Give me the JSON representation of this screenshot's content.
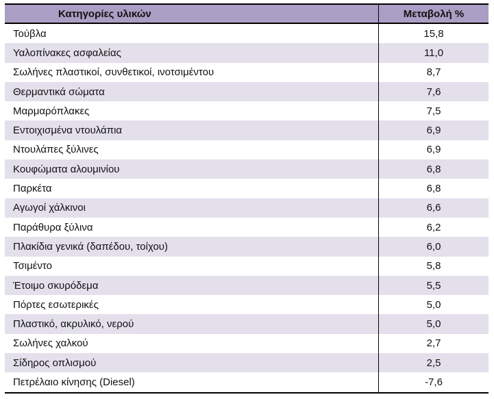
{
  "table": {
    "header": {
      "category": "Κατηγορίες υλικών",
      "change": "Μεταβολή %"
    },
    "rows": [
      {
        "category": "Τούβλα",
        "change": "15,8"
      },
      {
        "category": "Υαλοπίνακες ασφαλείας",
        "change": "11,0"
      },
      {
        "category": "Σωλήνες πλαστικοί, συνθετικοί, ινοτσιμέντου",
        "change": "8,7"
      },
      {
        "category": "Θερμαντικά σώματα",
        "change": "7,6"
      },
      {
        "category": "Μαρμαρόπλακες",
        "change": "7,5"
      },
      {
        "category": "Εντοιχισμένα ντουλάπια",
        "change": "6,9"
      },
      {
        "category": "Ντουλάπες ξύλινες",
        "change": "6,9"
      },
      {
        "category": "Κουφώματα αλουμινίου",
        "change": "6,8"
      },
      {
        "category": "Παρκέτα",
        "change": "6,8"
      },
      {
        "category": "Αγωγοί χάλκινοι",
        "change": "6,6"
      },
      {
        "category": "Παράθυρα ξύλινα",
        "change": "6,2"
      },
      {
        "category": "Πλακίδια γενικά (δαπέδου, τοίχου)",
        "change": "6,0"
      },
      {
        "category": "Τσιμέντο",
        "change": "5,8"
      },
      {
        "category": "Έτοιμο σκυρόδεμα",
        "change": "5,5"
      },
      {
        "category": "Πόρτες εσωτερικές",
        "change": "5,0"
      },
      {
        "category": "Πλαστικό, ακρυλικό, νερού",
        "change": "5,0"
      },
      {
        "category": "Σωλήνες χαλκού",
        "change": "2,7"
      },
      {
        "category": "Σίδηρος οπλισμού",
        "change": "2,5"
      },
      {
        "category": "Πετρέλαιο κίνησης (Diesel)",
        "change": "-7,6"
      }
    ]
  },
  "colors": {
    "header_bg": "#ab9ec4",
    "alt_row_bg": "#e3dfeb",
    "border": "#000000",
    "text": "#111111"
  },
  "chart_data": {
    "type": "table",
    "columns": [
      "Κατηγορίες υλικών",
      "Μεταβολή %"
    ],
    "rows": [
      [
        "Τούβλα",
        15.8
      ],
      [
        "Υαλοπίνακες ασφαλείας",
        11.0
      ],
      [
        "Σωλήνες πλαστικοί, συνθετικοί, ινοτσιμέντου",
        8.7
      ],
      [
        "Θερμαντικά σώματα",
        7.6
      ],
      [
        "Μαρμαρόπλακες",
        7.5
      ],
      [
        "Εντοιχισμένα ντουλάπια",
        6.9
      ],
      [
        "Ντουλάπες ξύλινες",
        6.9
      ],
      [
        "Κουφώματα αλουμινίου",
        6.8
      ],
      [
        "Παρκέτα",
        6.8
      ],
      [
        "Αγωγοί χάλκινοι",
        6.6
      ],
      [
        "Παράθυρα ξύλινα",
        6.2
      ],
      [
        "Πλακίδια γενικά (δαπέδου, τοίχου)",
        6.0
      ],
      [
        "Τσιμέντο",
        5.8
      ],
      [
        "Έτοιμο σκυρόδεμα",
        5.5
      ],
      [
        "Πόρτες εσωτερικές",
        5.0
      ],
      [
        "Πλαστικό, ακρυλικό, νερού",
        5.0
      ],
      [
        "Σωλήνες χαλκού",
        2.7
      ],
      [
        "Σίδηρος οπλισμού",
        2.5
      ],
      [
        "Πετρέλαιο κίνησης (Diesel)",
        -7.6
      ]
    ],
    "value_format": "comma-decimal",
    "notes": "alternating row shading; negative value only for Diesel"
  }
}
